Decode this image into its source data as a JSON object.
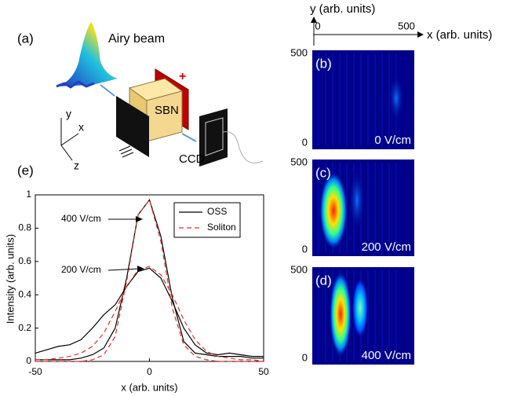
{
  "chart_data": {
    "type": "line",
    "panel_label": "(e)",
    "x_label": "x (arb. units)",
    "y_label": "Intensity (arb. units)",
    "x": [
      -50,
      -45,
      -40,
      -35,
      -30,
      -25,
      -20,
      -15,
      -10,
      -5,
      0,
      5,
      10,
      15,
      20,
      25,
      30,
      35,
      40,
      45,
      50
    ],
    "series": [
      {
        "name": "OSS",
        "color": "#000000",
        "dashed": false,
        "lines": [
          {
            "values": [
              0.01,
              0.01,
              0.01,
              0.01,
              0.02,
              0.04,
              0.08,
              0.2,
              0.5,
              0.88,
              0.97,
              0.75,
              0.38,
              0.12,
              0.05,
              0.04,
              0.03,
              0.03,
              0.03,
              0.02,
              0.02
            ]
          },
          {
            "values": [
              0.05,
              0.07,
              0.09,
              0.1,
              0.13,
              0.2,
              0.28,
              0.34,
              0.45,
              0.54,
              0.56,
              0.5,
              0.36,
              0.2,
              0.1,
              0.05,
              0.04,
              0.05,
              0.04,
              0.03,
              0.03
            ]
          }
        ]
      },
      {
        "name": "Soliton",
        "color": "#e0302a",
        "dashed": true,
        "lines": [
          {
            "values": [
              0,
              0,
              0,
              0,
              0,
              0.01,
              0.04,
              0.15,
              0.48,
              0.88,
              0.97,
              0.72,
              0.32,
              0.1,
              0.03,
              0.01,
              0,
              0,
              0,
              0,
              0
            ]
          },
          {
            "values": [
              0.01,
              0.01,
              0.02,
              0.03,
              0.05,
              0.09,
              0.17,
              0.3,
              0.45,
              0.55,
              0.57,
              0.52,
              0.4,
              0.25,
              0.13,
              0.06,
              0.03,
              0.02,
              0.01,
              0.01,
              0
            ]
          }
        ]
      }
    ],
    "annotations": [
      "400 V/cm",
      "200 V/cm"
    ],
    "xlim": [
      -50,
      50
    ],
    "ylim": [
      0,
      1
    ],
    "xticks": [
      -50,
      0,
      50
    ],
    "yticks": [
      0,
      0.2,
      0.4,
      0.6,
      0.8,
      1
    ],
    "legend": "upper right"
  },
  "schematic": {
    "panel_label": "(a)",
    "beam": "Airy beam",
    "crystal": "SBN",
    "electrode": "+",
    "camera": "CCD",
    "axes": [
      "y",
      "x",
      "z"
    ]
  },
  "heatmaps": {
    "y_label": "y (arb. units)",
    "x_label": "x (arb. units)",
    "x_ticks": [
      "0",
      "500"
    ],
    "panels": [
      {
        "label": "(b)",
        "field": "0 V/cm",
        "y_ticks": [
          "500",
          "0"
        ]
      },
      {
        "label": "(c)",
        "field": "200 V/cm",
        "y_ticks": [
          "500",
          "0"
        ]
      },
      {
        "label": "(d)",
        "field": "400 V/cm",
        "y_ticks": [
          "500",
          "0"
        ]
      }
    ]
  }
}
